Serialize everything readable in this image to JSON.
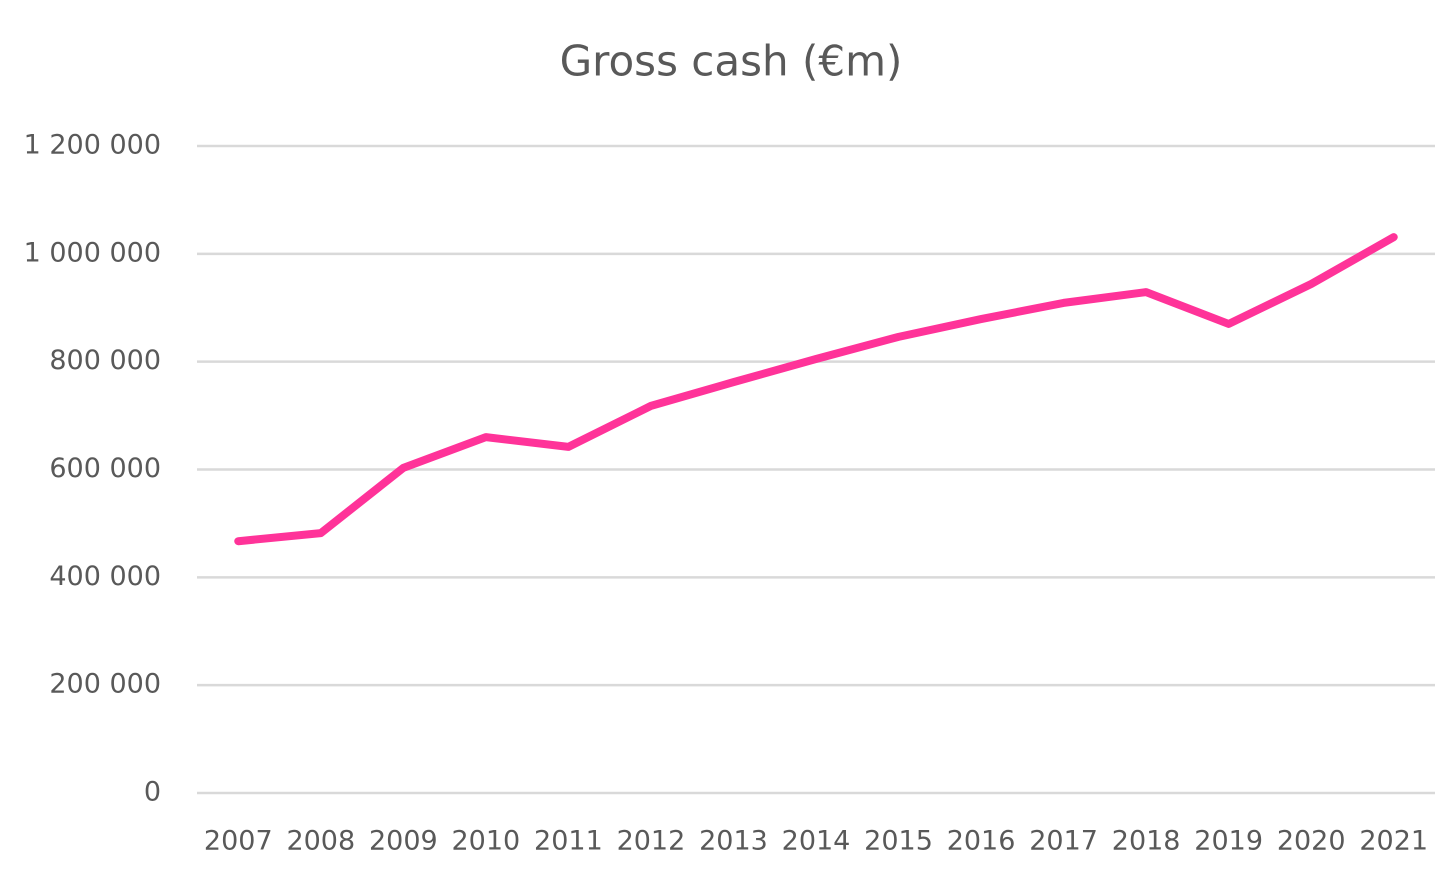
{
  "chart_data": {
    "type": "line",
    "title": "Gross cash (€m)",
    "categories": [
      "2007",
      "2008",
      "2009",
      "2010",
      "2011",
      "2012",
      "2013",
      "2014",
      "2015",
      "2016",
      "2017",
      "2018",
      "2019",
      "2020",
      "2021"
    ],
    "series": [
      {
        "name": "Gross cash",
        "color": "#ff3399",
        "values": [
          467000,
          482000,
          603000,
          660000,
          642000,
          718000,
          762000,
          805000,
          846000,
          879000,
          909000,
          929000,
          870000,
          944000,
          1031000
        ]
      }
    ],
    "ylim": [
      0,
      1200000
    ],
    "yticks": [
      0,
      {
        "value": 200000,
        "label": "200 000"
      },
      {
        "value": 400000,
        "label": "400 000"
      },
      {
        "value": 600000,
        "label": "600 000"
      },
      {
        "value": 800000,
        "label": "800 000"
      },
      {
        "value": 1000000,
        "label": "1 000 000"
      },
      {
        "value": 1200000,
        "label": "1 200 000"
      }
    ],
    "grid": true
  }
}
